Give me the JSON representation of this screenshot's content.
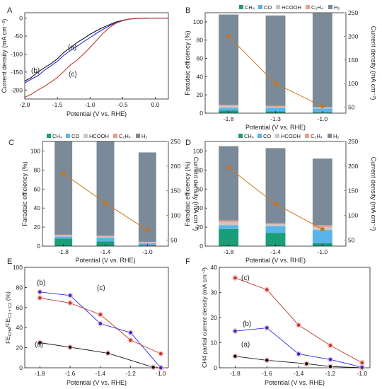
{
  "legend_labels": {
    "ch4": "CH₄",
    "co": "CO",
    "hcooh": "HCOOH",
    "c2h4": "C₂H₄",
    "h2": "H₂"
  },
  "colors": {
    "ch4": "#1a9e77",
    "co": "#5ab4ea",
    "hcooh": "#c8c8c8",
    "c2h4": "#e8a090",
    "h2": "#7a8a98",
    "current": "#d2781e",
    "a": "#111111",
    "b": "#2a2ae0",
    "c": "#c0392b",
    "pink": "#f2b8b8"
  },
  "chart_data": [
    {
      "panel": "A",
      "type": "line",
      "xlabel": "Potential (V vs. RHE)",
      "ylabel": "Current density (mA cm⁻²)",
      "xlim": [
        -2.0,
        0.2
      ],
      "ylim": [
        -225,
        15
      ],
      "xticks": [
        -2.0,
        -1.5,
        -1.0,
        -0.5,
        0.0
      ],
      "xtick_labels": [
        "-2.0",
        "-1.5",
        "-1.0",
        "-0.5",
        "0.0"
      ],
      "yticks": [
        0,
        -50,
        -100,
        -150,
        -200
      ],
      "series": [
        {
          "name": "(a)",
          "x": [
            -2.0,
            -1.9,
            -1.8,
            -1.7,
            -1.6,
            -1.5,
            -1.4,
            -1.3,
            -1.2,
            -1.1,
            -1.0,
            -0.9,
            -0.8,
            -0.7,
            -0.6,
            -0.5,
            -0.4,
            -0.3,
            -0.2,
            -0.1,
            0.0,
            0.2
          ],
          "y": [
            -175,
            -165,
            -150,
            -138,
            -127,
            -113,
            -95,
            -82,
            -68,
            -57,
            -45,
            -35,
            -26,
            -18,
            -11,
            -6,
            -3,
            -1,
            -0.5,
            0,
            0,
            0
          ]
        },
        {
          "name": "(b)",
          "x": [
            -2.0,
            -1.9,
            -1.8,
            -1.7,
            -1.6,
            -1.5,
            -1.4,
            -1.3,
            -1.2,
            -1.1,
            -1.0,
            -0.9,
            -0.8,
            -0.7,
            -0.6,
            -0.5,
            -0.4,
            -0.3,
            -0.2,
            -0.1,
            0.0,
            0.2
          ],
          "y": [
            -180,
            -170,
            -160,
            -145,
            -133,
            -120,
            -103,
            -90,
            -78,
            -66,
            -54,
            -42,
            -31,
            -21,
            -13,
            -7,
            -3,
            -1,
            -0.5,
            0,
            0,
            0
          ]
        },
        {
          "name": "(c)",
          "x": [
            -2.0,
            -1.9,
            -1.8,
            -1.7,
            -1.6,
            -1.5,
            -1.4,
            -1.3,
            -1.2,
            -1.1,
            -1.0,
            -0.9,
            -0.8,
            -0.7,
            -0.6,
            -0.5,
            -0.4,
            -0.3,
            -0.2,
            -0.1,
            0.0,
            0.2
          ],
          "y": [
            -220,
            -212,
            -200,
            -190,
            -178,
            -165,
            -148,
            -130,
            -117,
            -100,
            -82,
            -62,
            -42,
            -26,
            -14,
            -7,
            -3,
            -1,
            -0.5,
            0,
            0,
            0
          ]
        }
      ]
    },
    {
      "panel": "B",
      "type": "bar",
      "categories": [
        "-1.8",
        "-1.3",
        "-1.0"
      ],
      "xlabel": "Potential (V vs. RHE)",
      "ylabel": "Faradaic efficiency (%)",
      "ylabel2": "Current density (mA cm⁻²)",
      "ylim": [
        0,
        110
      ],
      "y2lim": [
        37.5,
        250
      ],
      "yticks": [
        0,
        20,
        40,
        60,
        80,
        100
      ],
      "y2ticks": [
        50,
        100,
        150,
        200,
        250
      ],
      "stacks": [
        {
          "ch4": 3,
          "co": 3,
          "hcooh": 2,
          "c2h4": 1,
          "h2": 99
        },
        {
          "ch4": 2,
          "co": 4,
          "hcooh": 1,
          "c2h4": 1,
          "h2": 99
        },
        {
          "ch4": 1,
          "co": 4,
          "hcooh": 1,
          "c2h4": 0.5,
          "h2": 103
        }
      ],
      "current": [
        200,
        100,
        52
      ]
    },
    {
      "panel": "C",
      "type": "bar",
      "categories": [
        "-1.8",
        "-1.4",
        "-1.0"
      ],
      "xlabel": "Potential (V vs. RHE)",
      "ylabel": "Faradaic efficiency (%)",
      "ylabel2": "Current density (mA cm⁻²)",
      "ylim": [
        0,
        110
      ],
      "y2lim": [
        37.5,
        250
      ],
      "yticks": [
        0,
        20,
        40,
        60,
        80,
        100
      ],
      "y2ticks": [
        50,
        100,
        150,
        200,
        250
      ],
      "stacks": [
        {
          "ch4": 8,
          "co": 2,
          "hcooh": 1,
          "c2h4": 1,
          "h2": 100
        },
        {
          "ch4": 5,
          "co": 4,
          "hcooh": 1,
          "c2h4": 1,
          "h2": 101
        },
        {
          "ch4": 1,
          "co": 2,
          "hcooh": 1,
          "c2h4": 0.5,
          "h2": 94
        }
      ],
      "current": [
        185,
        125,
        70
      ]
    },
    {
      "panel": "D",
      "type": "bar",
      "categories": [
        "-1.8",
        "-1.4",
        "-1.0"
      ],
      "xlabel": "Potential (V vs. RHE)",
      "ylabel": "Faradaic efficiency (%)",
      "ylabel2": "Current density (mA cm⁻²)",
      "ylim": [
        0,
        110
      ],
      "y2lim": [
        37.5,
        250
      ],
      "yticks": [
        0,
        20,
        40,
        60,
        80,
        100
      ],
      "y2ticks": [
        50,
        100,
        150,
        200,
        250
      ],
      "stacks": [
        {
          "ch4": 18,
          "co": 4,
          "hcooh": 3,
          "c2h4": 2,
          "h2": 78
        },
        {
          "ch4": 14,
          "co": 7,
          "hcooh": 2,
          "c2h4": 1,
          "h2": 79
        },
        {
          "ch4": 3,
          "co": 14,
          "hcooh": 3,
          "c2h4": 2,
          "h2": 70
        }
      ],
      "current": [
        197,
        123,
        72
      ]
    },
    {
      "panel": "E",
      "type": "line",
      "xlabel": "Potential (V vs. RHE)",
      "ylabel": "FE_CH4 / FE_C1+C2 (%)",
      "xlim": [
        -1.9,
        -0.95
      ],
      "ylim": [
        0,
        100
      ],
      "xticks": [
        -1.8,
        -1.6,
        -1.4,
        -1.2,
        -1.0
      ],
      "yticks": [
        0,
        20,
        40,
        60,
        80,
        100
      ],
      "series": [
        {
          "name": "(a)",
          "x": [
            -1.8,
            -1.6,
            -1.35,
            -1.05,
            -1.0
          ],
          "y": [
            25,
            20.5,
            14.5,
            0.5,
            0
          ]
        },
        {
          "name": "(b)",
          "x": [
            -1.8,
            -1.6,
            -1.4,
            -1.2,
            -1.0
          ],
          "y": [
            75.5,
            72,
            44,
            35,
            0
          ]
        },
        {
          "name": "(c)",
          "x": [
            -1.8,
            -1.6,
            -1.4,
            -1.2,
            -1.0
          ],
          "y": [
            69.5,
            64.5,
            53,
            27.5,
            14
          ]
        }
      ]
    },
    {
      "panel": "F",
      "type": "line",
      "xlabel": "Potential (V vs. RHE)",
      "ylabel": "CH4 partial current density (mA cm⁻²)",
      "xlim": [
        -1.9,
        -0.95
      ],
      "ylim": [
        0,
        40
      ],
      "xticks": [
        -1.8,
        -1.6,
        -1.4,
        -1.2,
        -1.0
      ],
      "yticks": [
        0,
        10,
        20,
        30,
        40
      ],
      "series": [
        {
          "name": "(a)",
          "x": [
            -1.8,
            -1.6,
            -1.35,
            -1.2,
            -1.0
          ],
          "y": [
            4.6,
            3.0,
            1.6,
            0.5,
            0
          ]
        },
        {
          "name": "(b)",
          "x": [
            -1.8,
            -1.6,
            -1.4,
            -1.2,
            -1.0
          ],
          "y": [
            14.6,
            15.9,
            5.5,
            3.3,
            0.2
          ]
        },
        {
          "name": "(c)",
          "x": [
            -1.8,
            -1.6,
            -1.4,
            -1.2,
            -1.0
          ],
          "y": [
            35.8,
            31.1,
            17.0,
            8.9,
            2.0
          ]
        }
      ]
    }
  ]
}
